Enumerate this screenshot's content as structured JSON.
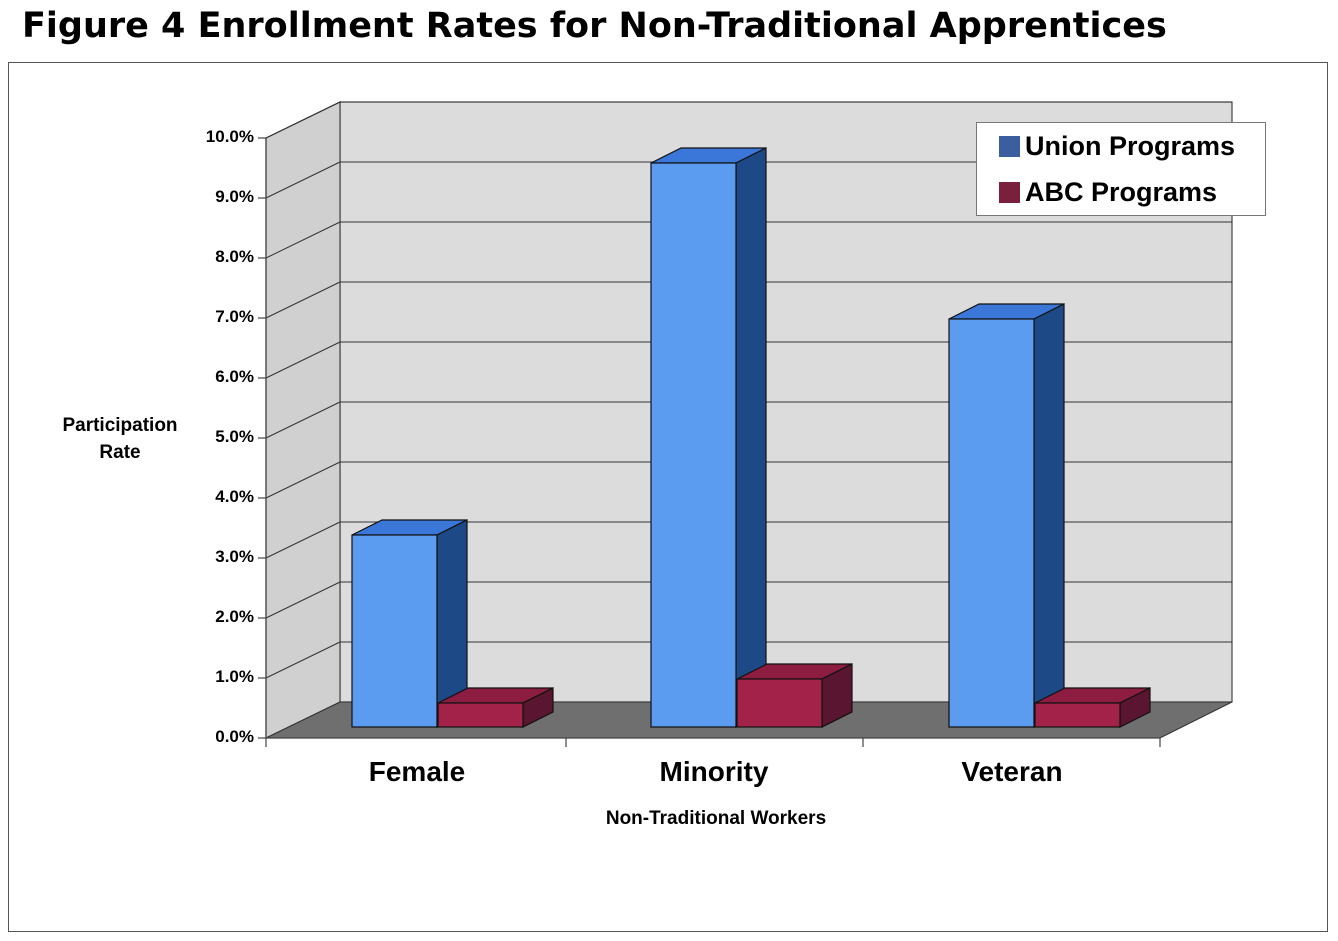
{
  "figure_title": "Figure 4 Enrollment Rates for Non-Traditional Apprentices",
  "chart_data": {
    "type": "bar",
    "title": "Figure 4 Enrollment Rates for Non-Traditional Apprentices",
    "xlabel": "Non-Traditional Workers",
    "ylabel": "Participation Rate",
    "categories": [
      "Female",
      "Minority",
      "Veteran"
    ],
    "series": [
      {
        "name": "Union Programs",
        "values": [
          3.2,
          9.4,
          6.8
        ],
        "color": "#5b9cf0"
      },
      {
        "name": "ABC Programs",
        "values": [
          0.4,
          0.8,
          0.4
        ],
        "color": "#a3224a"
      }
    ],
    "ylim": [
      0,
      10
    ],
    "yticks": [
      "0.0%",
      "1.0%",
      "2.0%",
      "3.0%",
      "4.0%",
      "5.0%",
      "6.0%",
      "7.0%",
      "8.0%",
      "9.0%",
      "10.0%"
    ],
    "grid": true,
    "legend_position": "top-right",
    "style": "3d-clustered-column"
  }
}
